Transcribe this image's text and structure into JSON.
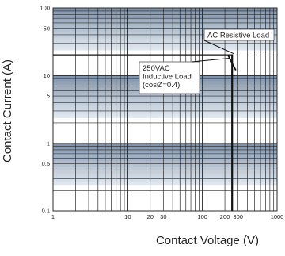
{
  "chart_data": {
    "type": "line",
    "title": "",
    "xlabel": "Contact Voltage (V)",
    "ylabel": "Contact Current (A)",
    "xscale": "log",
    "yscale": "log",
    "xlim": [
      1,
      1000
    ],
    "ylim": [
      0.1,
      100
    ],
    "grid": true,
    "x_tick_labels": [
      "1",
      "10",
      "20",
      "30",
      "100",
      "200",
      "300",
      "1000"
    ],
    "y_tick_labels": [
      "0.1",
      "0.5",
      "1",
      "5",
      "10",
      "50",
      "100"
    ],
    "series": [
      {
        "name": "AC Resistive Load",
        "points": [
          [
            1,
            20
          ],
          [
            250,
            20
          ],
          [
            250,
            0.1
          ]
        ]
      },
      {
        "name": "250VAC Inductive Load (cosØ=0.4)",
        "points": [
          [
            1,
            20
          ],
          [
            220,
            20
          ],
          [
            280,
            12
          ]
        ]
      }
    ],
    "annotations": [
      {
        "lines": [
          "AC Resistive Load"
        ]
      },
      {
        "lines": [
          "250VAC",
          "Inductive Load",
          "(cosØ=0.4)"
        ]
      }
    ],
    "colors": {
      "band_dark": "#7f93ab",
      "band_light": "#dfe6ee",
      "grid": "#2a2a2a",
      "line": "#111111"
    }
  }
}
